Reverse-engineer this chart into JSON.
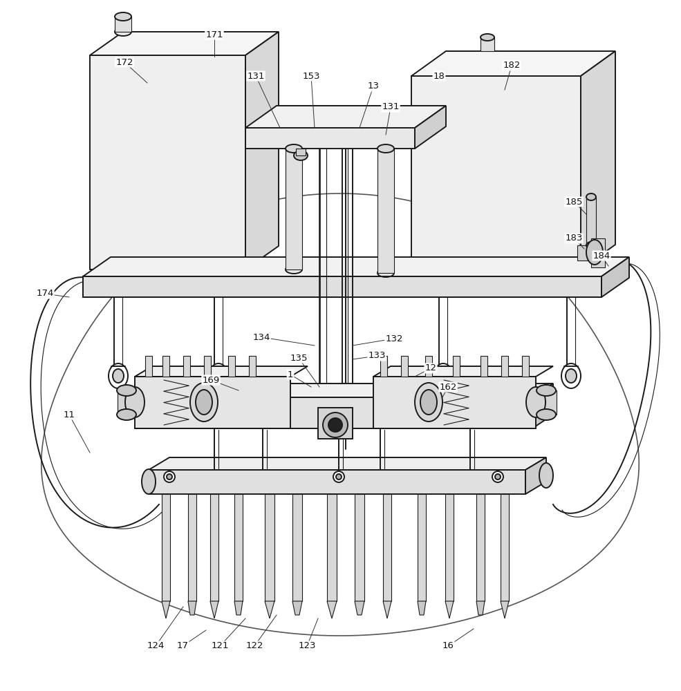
{
  "bg_color": "#ffffff",
  "lc": "#1a1a1a",
  "lw": 1.4,
  "tlw": 0.8,
  "fig_w": 9.85,
  "fig_h": 10.0,
  "dpi": 100
}
